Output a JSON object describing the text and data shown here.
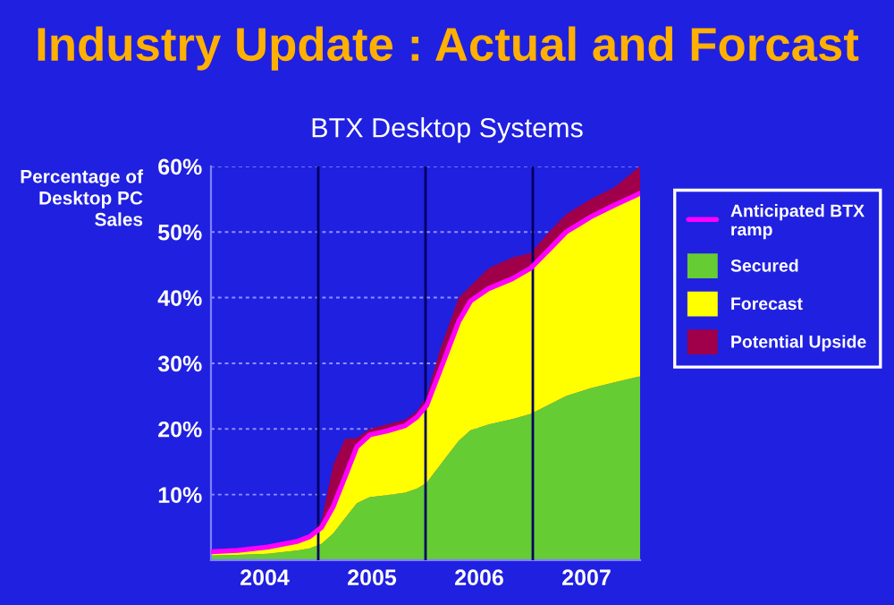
{
  "chart_data": {
    "type": "area",
    "title": "Industry Update : Actual and Forcast",
    "subtitle": "BTX Desktop Systems",
    "ylabel": "Percentage of\nDesktop PC\nSales",
    "x": [
      2004.0,
      2004.25,
      2004.53,
      2004.81,
      2004.92,
      2005.03,
      2005.14,
      2005.25,
      2005.36,
      2005.48,
      2005.64,
      2005.81,
      2005.92,
      2006.01,
      2006.14,
      2006.31,
      2006.42,
      2006.59,
      2006.81,
      2006.98,
      2007.15,
      2007.31,
      2007.54,
      2007.76,
      2008.0
    ],
    "stacked": true,
    "series": [
      {
        "name": "Anticipated BTX ramp",
        "type": "line",
        "color": "#ff00ff",
        "values": [
          1.3,
          1.5,
          2.0,
          2.9,
          3.6,
          5.0,
          8.2,
          12.7,
          17.3,
          19.1,
          19.7,
          20.5,
          21.8,
          23.6,
          29.1,
          36.4,
          39.5,
          41.4,
          42.9,
          44.5,
          47.3,
          50,
          52.3,
          54.1,
          55.9
        ]
      },
      {
        "name": "Secured",
        "color": "#66cc33",
        "values": [
          0.7,
          0.8,
          1.0,
          1.5,
          1.8,
          2.5,
          4.1,
          6.4,
          8.7,
          9.6,
          9.9,
          10.3,
          10.9,
          11.8,
          14.6,
          18.2,
          19.8,
          20.7,
          21.5,
          22.3,
          23.7,
          25,
          26.2,
          27.1,
          28.0
        ]
      },
      {
        "name": "Forecast",
        "color": "#ffff00",
        "values": [
          0.6,
          0.7,
          1.0,
          1.4,
          1.8,
          2.5,
          4.1,
          6.3,
          8.6,
          9.5,
          9.8,
          10.2,
          10.9,
          11.8,
          14.5,
          18.2,
          19.7,
          20.7,
          21.4,
          22.2,
          23.6,
          25,
          26.1,
          27.0,
          27.9
        ]
      },
      {
        "name": "Potential Upside",
        "color": "#a0004a",
        "values": [
          0,
          0,
          0,
          0,
          0.2,
          1.0,
          6.3,
          5.8,
          1.3,
          0.9,
          1.0,
          0.9,
          0.9,
          1.4,
          3.2,
          3.6,
          2.3,
          3.1,
          3.2,
          2.3,
          2.7,
          2.7,
          2.7,
          2.7,
          4.1
        ]
      }
    ],
    "xlim": [
      2004.0,
      2008.0
    ],
    "xticks": [
      {
        "value": 2004.5,
        "label": "2004"
      },
      {
        "value": 2005.5,
        "label": "2005"
      },
      {
        "value": 2006.5,
        "label": "2006"
      },
      {
        "value": 2007.5,
        "label": "2007"
      }
    ],
    "ylim": [
      0,
      60
    ],
    "yticks": [
      {
        "value": 0,
        "label": null
      },
      {
        "value": 10,
        "label": "10%"
      },
      {
        "value": 20,
        "label": "20%"
      },
      {
        "value": 30,
        "label": "30%"
      },
      {
        "value": 40,
        "label": "40%"
      },
      {
        "value": 50,
        "label": "50%"
      },
      {
        "value": 60,
        "label": "60%"
      }
    ],
    "ref_lines": [
      {
        "axis": "x",
        "value": 2005,
        "color": "#000060"
      },
      {
        "axis": "x",
        "value": 2006,
        "color": "#000060"
      },
      {
        "axis": "x",
        "value": 2007,
        "color": "#000060"
      }
    ],
    "grid": "y",
    "legend": "right"
  }
}
